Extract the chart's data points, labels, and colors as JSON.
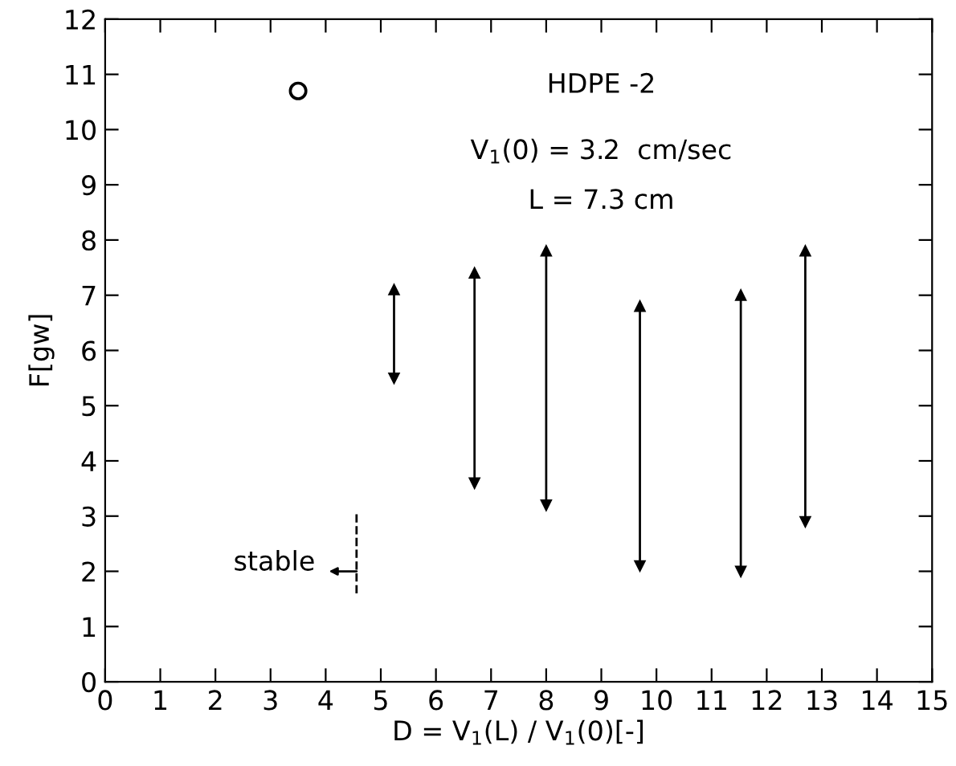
{
  "chart_data": {
    "type": "bar",
    "xlabel": "D = V$_{1}$(L) / V$_{1}$(0)[-]",
    "ylabel": "F[gw]",
    "annotations": [
      "HDPE -2",
      "V$_{1}$(0) = 3.2  cm/sec",
      "L = 7.3 cm",
      {
        "text": "stable",
        "x": 4.56,
        "y": 2.0
      }
    ],
    "series": [
      {
        "color": "#000000",
        "x": [
          5.24,
          6.7,
          8.0,
          9.7,
          11.53,
          12.7
        ],
        "base": [
          5.5,
          3.6,
          3.2,
          2.1,
          2.0,
          2.9
        ],
        "values": [
          1.6,
          3.8,
          4.6,
          4.7,
          5.0,
          4.9
        ]
      },
      {
        "type": "scatter",
        "color": "#000000",
        "marker": "circle",
        "x": [
          3.5
        ],
        "values": [
          10.7
        ]
      },
      {
        "type": "line",
        "color": "#000000",
        "line_style": "dashed",
        "x": [
          4.56,
          4.56
        ],
        "values": [
          1.6,
          3.1
        ]
      }
    ],
    "xlim": [
      0,
      15
    ],
    "ylim": [
      0,
      12
    ],
    "xticks": [
      0,
      1,
      2,
      3,
      4,
      5,
      6,
      7,
      8,
      9,
      10,
      11,
      12,
      13,
      14,
      15
    ],
    "yticks": [
      0,
      1,
      2,
      3,
      4,
      5,
      6,
      7,
      8,
      9,
      10,
      11,
      12
    ],
    "grid": false,
    "legend": false
  }
}
